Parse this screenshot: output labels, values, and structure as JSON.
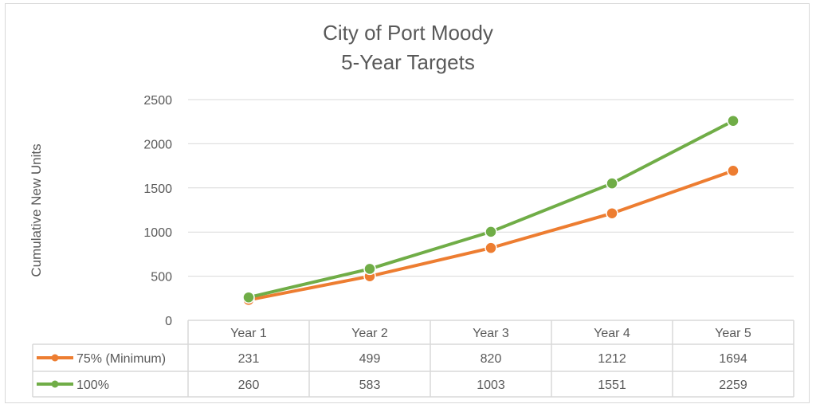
{
  "chart_data": {
    "type": "line",
    "title": [
      "City of Port Moody",
      "5-Year Targets"
    ],
    "xlabel": "",
    "ylabel": "Cumulative New Units",
    "ylim": [
      0,
      2500
    ],
    "yticks": [
      0,
      500,
      1000,
      1500,
      2000,
      2500
    ],
    "grid": true,
    "legend": "data-table",
    "categories": [
      "Year 1",
      "Year 2",
      "Year 3",
      "Year 4",
      "Year 5"
    ],
    "series": [
      {
        "name": "75% (Minimum)",
        "color": "#ED7D31",
        "values": [
          231,
          499,
          820,
          1212,
          1694
        ]
      },
      {
        "name": "100%",
        "color": "#70AD47",
        "values": [
          260,
          583,
          1003,
          1551,
          2259
        ]
      }
    ]
  }
}
